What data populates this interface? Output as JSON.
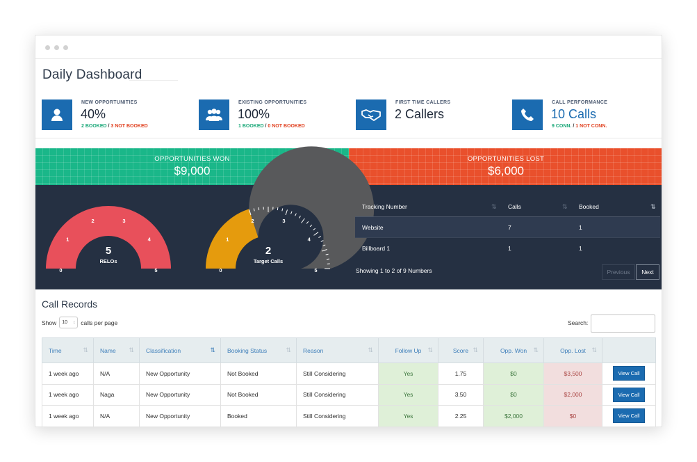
{
  "page_title": "Daily Dashboard",
  "kpis": [
    {
      "label": "NEW OPPORTUNITIES",
      "value": "40%",
      "sub_green": "2 BOOKED",
      "sep": " / ",
      "sub_red": "3 NOT BOOKED",
      "icon": "user-icon"
    },
    {
      "label": "EXISTING OPPORTUNITIES",
      "value": "100%",
      "sub_green": "1 BOOKED",
      "sep": " / ",
      "sub_red": "0 NOT BOOKED",
      "icon": "group-icon"
    },
    {
      "label": "FIRST TIME CALLERS",
      "value": "2 Callers",
      "sub_green": "",
      "sep": "",
      "sub_red": "",
      "icon": "handshake-icon"
    },
    {
      "label": "CALL PERFORMANCE",
      "value": "10 Calls",
      "sub_green": "9 CONN.",
      "sep": " / ",
      "sub_red": "1 NOT CONN.",
      "icon": "phone-icon"
    }
  ],
  "opportunities": {
    "won_label": "OPPORTUNITIES WON",
    "won_value": "$9,000",
    "lost_label": "OPPORTUNITIES LOST",
    "lost_value": "$6,000"
  },
  "gauges": [
    {
      "value": "5",
      "label": "RELOs",
      "min": "0",
      "max": "5",
      "ticks": [
        "1",
        "2",
        "3",
        "4"
      ],
      "fraction": 1.0,
      "color": "#e8505b"
    },
    {
      "value": "2",
      "label": "Target Calls",
      "min": "0",
      "max": "5",
      "ticks": [
        "1",
        "2",
        "3",
        "4"
      ],
      "fraction": 0.4,
      "color": "#e59b0d"
    }
  ],
  "tracking": {
    "headers": [
      "Tracking Number",
      "Calls",
      "Booked"
    ],
    "rows": [
      [
        "Website",
        "7",
        "1"
      ],
      [
        "Billboard 1",
        "1",
        "1"
      ]
    ],
    "showing": "Showing 1 to 2 of 9 Numbers",
    "prev": "Previous",
    "next": "Next"
  },
  "call_records": {
    "title": "Call Records",
    "show_label": "Show",
    "page_len": "10",
    "per_page_label": "calls per page",
    "search_label": "Search:",
    "search_value": "",
    "headers": [
      "Time",
      "Name",
      "Classification",
      "Booking Status",
      "Reason",
      "Follow Up",
      "Score",
      "Opp. Won",
      "Opp. Lost",
      ""
    ],
    "rows": [
      [
        "1 week ago",
        "N/A",
        "New Opportunity",
        "Not Booked",
        "Still Considering",
        "Yes",
        "1.75",
        "$0",
        "$3,500",
        "View Call"
      ],
      [
        "1 week ago",
        "Naga",
        "New Opportunity",
        "Not Booked",
        "Still Considering",
        "Yes",
        "3.50",
        "$0",
        "$2,000",
        "View Call"
      ],
      [
        "1 week ago",
        "N/A",
        "New Opportunity",
        "Booked",
        "Still Considering",
        "Yes",
        "2.25",
        "$2,000",
        "$0",
        "View Call"
      ]
    ]
  },
  "colors": {
    "brand_blue": "#1b6bb0",
    "won_green": "#1ab789",
    "lost_red": "#e9502c",
    "panel_dark": "#253042"
  }
}
